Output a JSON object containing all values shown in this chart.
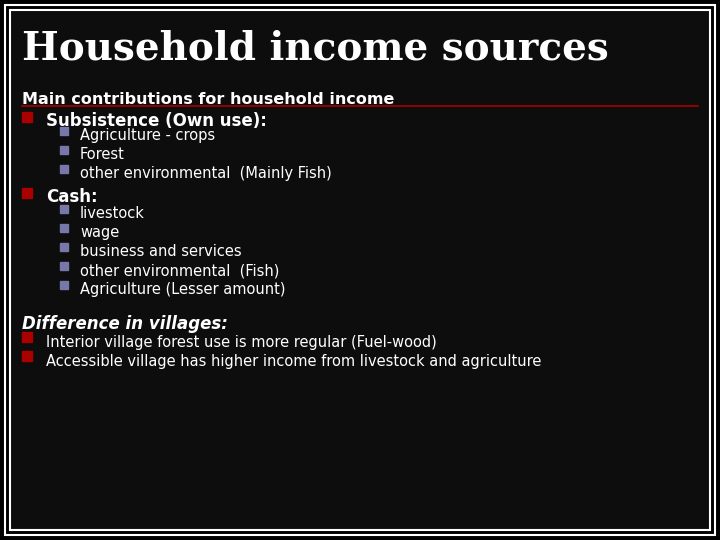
{
  "title": "Household income sources",
  "subtitle": "Main contributions for household income",
  "bg_color": "#000000",
  "slide_bg": "#0d0d0d",
  "border_outer_color": "#ffffff",
  "border_inner_color": "#ffffff",
  "title_color": "#ffffff",
  "subtitle_color": "#ffffff",
  "text_color": "#ffffff",
  "red_bullet": "#aa0000",
  "gray_bullet": "#7777aa",
  "divider_color": "#aa0000",
  "subsistence_subitems": [
    "Agriculture - crops",
    "Forest",
    "other environmental  (Mainly Fish)"
  ],
  "cash_subitems": [
    "livestock",
    "wage",
    "business and services",
    "other environmental  (Fish)",
    "Agriculture (Lesser amount)"
  ],
  "difference_title": "Difference in villages:",
  "difference_items": [
    "Interior village forest use is more regular (Fuel-wood)",
    "Accessible village has higher income from livestock and agriculture"
  ]
}
